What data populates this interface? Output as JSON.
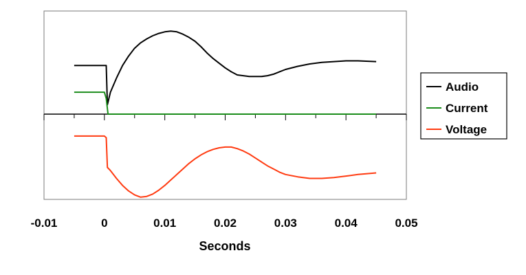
{
  "chart_data": {
    "type": "line",
    "xlabel": "Seconds",
    "xlim": [
      -0.01,
      0.05
    ],
    "x_ticks": [
      "-0.01",
      "0",
      "0.01",
      "0.02",
      "0.03",
      "0.04",
      "0.05"
    ],
    "y_tick_labels": "none",
    "grid": false,
    "legend_position": "right",
    "series": [
      {
        "name": "Audio",
        "color": "#000000",
        "x": [
          -0.005,
          -0.002,
          0,
          0.0003,
          0.0005,
          0.001,
          0.002,
          0.003,
          0.004,
          0.005,
          0.006,
          0.007,
          0.008,
          0.009,
          0.01,
          0.011,
          0.012,
          0.013,
          0.014,
          0.015,
          0.016,
          0.017,
          0.018,
          0.019,
          0.02,
          0.021,
          0.022,
          0.023,
          0.024,
          0.025,
          0.026,
          0.027,
          0.028,
          0.029,
          0.03,
          0.032,
          0.034,
          0.036,
          0.038,
          0.04,
          0.042,
          0.045
        ],
        "values": [
          0.62,
          0.62,
          0.62,
          0.62,
          0.12,
          0.28,
          0.46,
          0.62,
          0.74,
          0.84,
          0.91,
          0.96,
          1.0,
          1.03,
          1.05,
          1.06,
          1.05,
          1.02,
          0.98,
          0.93,
          0.86,
          0.78,
          0.71,
          0.65,
          0.59,
          0.54,
          0.5,
          0.49,
          0.48,
          0.48,
          0.48,
          0.49,
          0.51,
          0.54,
          0.57,
          0.61,
          0.64,
          0.66,
          0.67,
          0.68,
          0.68,
          0.67
        ]
      },
      {
        "name": "Current",
        "color": "#1a8c1a",
        "x": [
          -0.005,
          -0.002,
          0,
          0.0003,
          0.0006,
          0.001,
          0.005,
          0.01,
          0.02,
          0.03,
          0.04,
          0.045
        ],
        "values": [
          0.28,
          0.28,
          0.28,
          0.2,
          0.0,
          0.0,
          0.0,
          0.0,
          0.0,
          0.0,
          0.0,
          0.0
        ]
      },
      {
        "name": "Voltage",
        "color": "#ff3a10",
        "x": [
          -0.005,
          -0.002,
          0,
          0.0003,
          0.0005,
          0.001,
          0.002,
          0.003,
          0.004,
          0.005,
          0.006,
          0.007,
          0.008,
          0.009,
          0.01,
          0.011,
          0.012,
          0.013,
          0.014,
          0.015,
          0.016,
          0.017,
          0.018,
          0.019,
          0.02,
          0.021,
          0.022,
          0.023,
          0.024,
          0.025,
          0.026,
          0.027,
          0.028,
          0.029,
          0.03,
          0.032,
          0.034,
          0.036,
          0.038,
          0.04,
          0.042,
          0.045
        ],
        "values": [
          -0.28,
          -0.28,
          -0.28,
          -0.3,
          -0.68,
          -0.72,
          -0.82,
          -0.91,
          -0.98,
          -1.03,
          -1.06,
          -1.05,
          -1.02,
          -0.97,
          -0.91,
          -0.84,
          -0.77,
          -0.7,
          -0.63,
          -0.57,
          -0.52,
          -0.48,
          -0.45,
          -0.43,
          -0.42,
          -0.42,
          -0.44,
          -0.47,
          -0.51,
          -0.56,
          -0.61,
          -0.66,
          -0.7,
          -0.74,
          -0.77,
          -0.8,
          -0.82,
          -0.82,
          -0.81,
          -0.79,
          -0.77,
          -0.75
        ]
      }
    ]
  }
}
